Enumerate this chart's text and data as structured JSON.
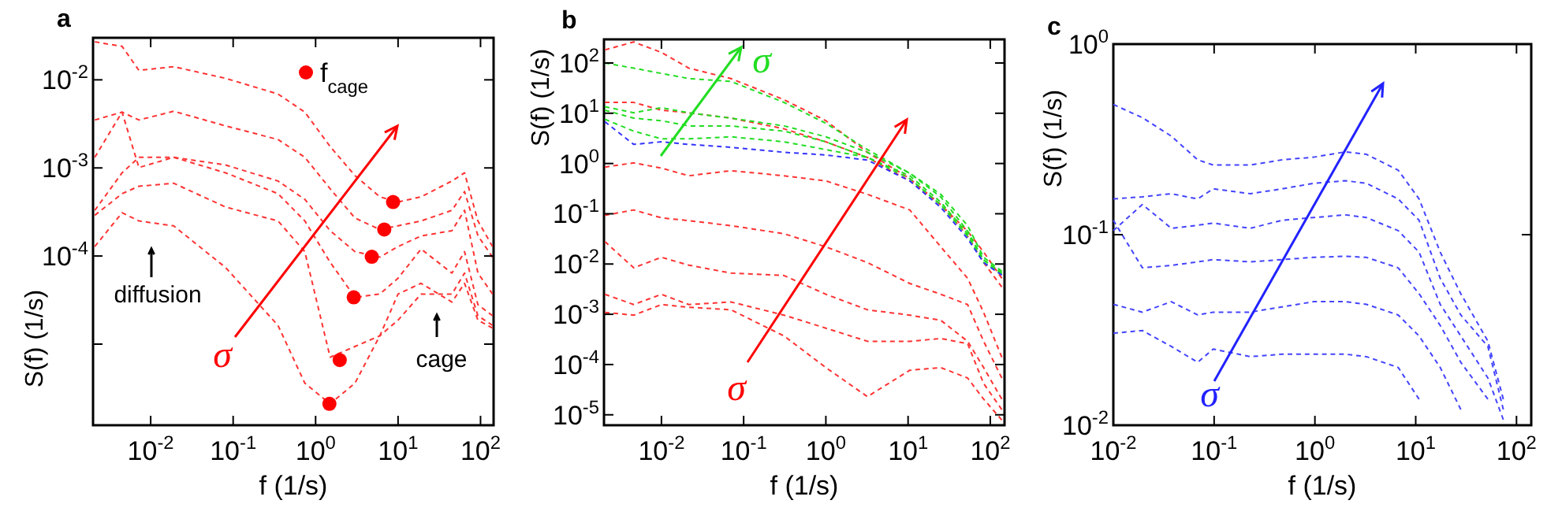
{
  "chart_data": [
    {
      "type": "line",
      "title": "a",
      "xlabel": "f  (1/s)",
      "ylabel": "S(f)  (1/s)",
      "log": "xy",
      "line_style": "dashed",
      "legend": "top",
      "x": [
        0.0021,
        0.0045,
        0.0072,
        0.019,
        0.081,
        0.35,
        0.74,
        1.5,
        3,
        6,
        10,
        19,
        45,
        64,
        93,
        140
      ],
      "xlim": [
        0.002,
        144
      ],
      "ylim": [
        1.2e-06,
        0.03
      ],
      "xticks": [
        {
          "value": 0.01,
          "label": "10$^{-2}$"
        },
        {
          "value": 0.1,
          "label": "10$^{-1}$"
        },
        {
          "value": 1,
          "label": "10$^{0}$"
        },
        {
          "value": 10,
          "label": "10$^{1}$"
        },
        {
          "value": 100,
          "label": "10$^{2}$"
        }
      ],
      "yticks": [
        {
          "value": 0.01,
          "label": "10$^{-2}$"
        },
        {
          "value": 0.001,
          "label": "10$^{-3}$"
        },
        {
          "value": 0.0001,
          "label": "10$^{-4}$"
        },
        {
          "value": 1e-05,
          "label": null
        }
      ],
      "series": [
        {
          "color": "#ff3333",
          "values": [
            0.027,
            0.024,
            0.0128,
            0.0141,
            0.0104,
            0.0069,
            0.0043,
            0.00175,
            0.00082,
            0.00047,
            0.00041,
            0.00047,
            0.00071,
            0.00088,
            0.00025,
            0.000128
          ]
        },
        {
          "color": "#ff3333",
          "values": [
            0.0035,
            0.0043,
            0.0035,
            0.0044,
            0.003,
            0.0021,
            0.00132,
            0.00058,
            0.00027,
            0.0002,
            0.00022,
            0.00025,
            0.00033,
            0.00054,
            0.00017,
            9.7e-05
          ]
        },
        {
          "color": "#ff3333",
          "values": [
            0.00132,
            0.0043,
            0.00101,
            0.00132,
            0.00108,
            0.00071,
            0.00044,
            0.000194,
            0.000112,
            9.7e-05,
            0.000128,
            0.000169,
            0.000194,
            0.00033,
            6.4e-05,
            3.7e-05
          ]
        },
        {
          "color": "#ff3333",
          "values": [
            0.00033,
            0.00088,
            0.00132,
            0.00132,
            0.00088,
            0.00051,
            0.00025,
            8.5e-05,
            3.4e-05,
            3.7e-05,
            5.6e-05,
            0.00012,
            6.4e-05,
            0.000112,
            2.8e-05,
            2.1e-05
          ]
        },
        {
          "color": "#ff3333",
          "values": [
            0.00029,
            0.00051,
            0.00062,
            0.00067,
            0.00036,
            0.00025,
            0.000112,
            7.1e-06,
            9.4e-06,
            1.24e-05,
            1.87e-05,
            3.7e-05,
            3.7e-05,
            6.4e-05,
            2.1e-05,
            1.63e-05
          ]
        },
        {
          "color": "#ff3333",
          "values": [
            0.000128,
            0.00031,
            0.00025,
            0.00022,
            7.4e-05,
            1.63e-05,
            3.6e-06,
            2.1e-06,
            3.6e-06,
            1.24e-05,
            3.7e-05,
            4.9e-05,
            3e-05,
            4.9e-05,
            1.87e-05,
            1.52e-05
          ]
        },
        {
          "type": "scatter",
          "name": "f$_{cage}$",
          "marker": "circle",
          "color": "#ff0000",
          "x": [
            8.7,
            6.8,
            4.8,
            2.9,
            1.96,
            1.47
          ],
          "values": [
            0.00041,
            0.0002,
            9.8e-05,
            3.4e-05,
            6.6e-06,
            2.1e-06
          ]
        }
      ],
      "annotations": [
        "diffusion",
        "cage",
        "σ"
      ]
    },
    {
      "type": "line",
      "title": "b",
      "xlabel": "f  (1/s)",
      "ylabel": "S(f)  (1/s)",
      "log": "xy",
      "line_style": "dashed",
      "x": [
        0.00205,
        0.0046,
        0.01,
        0.0215,
        0.07,
        0.31,
        1,
        3.2,
        10.5,
        25,
        53,
        83,
        138
      ],
      "xlim": [
        0.002,
        149
      ],
      "ylim": [
        6.2e-06,
        295
      ],
      "xticks": [
        {
          "value": 0.01,
          "label": "10$^{-2}$"
        },
        {
          "value": 0.1,
          "label": "10$^{-1}$"
        },
        {
          "value": 1,
          "label": "10$^{0}$"
        },
        {
          "value": 10,
          "label": "10$^{1}$"
        },
        {
          "value": 100,
          "label": "10$^{2}$"
        }
      ],
      "yticks": [
        {
          "value": 100,
          "label": "10$^{2}$"
        },
        {
          "value": 10,
          "label": "10$^{1}$"
        },
        {
          "value": 1,
          "label": "10$^{0}$"
        },
        {
          "value": 0.1,
          "label": "10$^{-1}$"
        },
        {
          "value": 0.01,
          "label": "10$^{-2}$"
        },
        {
          "value": 0.001,
          "label": "10$^{-3}$"
        },
        {
          "value": 0.0001,
          "label": "10$^{-4}$"
        },
        {
          "value": 1e-05,
          "label": "10$^{-5}$"
        }
      ],
      "series": [
        {
          "color": "#ff3333",
          "values": [
            182,
            262,
            162,
            79,
            49,
            18.6,
            7.1,
            1.67,
            0.5,
            0.151,
            0.045,
            0.0173,
            0.0052
          ]
        },
        {
          "color": "#ff3333",
          "values": [
            16.4,
            16.4,
            11.5,
            10.2,
            8.0,
            4.9,
            2.7,
            1.32,
            0.45,
            0.151,
            0.036,
            0.0107,
            0.0035
          ]
        },
        {
          "color": "#ff3333",
          "values": [
            0.85,
            1.03,
            0.81,
            0.57,
            0.72,
            0.57,
            0.45,
            0.244,
            0.119,
            0.022,
            0.0052,
            0.00109,
            0.00014
          ]
        },
        {
          "color": "#ff3333",
          "values": [
            0.093,
            0.119,
            0.083,
            0.073,
            0.058,
            0.04,
            0.022,
            0.0107,
            0.0041,
            0.0025,
            0.00156,
            0.00029,
            5.4e-05
          ]
        },
        {
          "color": "#ff3333",
          "values": [
            0.028,
            0.0084,
            0.0136,
            0.0095,
            0.0066,
            0.0059,
            0.0025,
            0.00123,
            0.00096,
            0.00076,
            0.00029,
            8.7e-05,
            2.05e-05
          ]
        },
        {
          "color": "#ff3333",
          "values": [
            0.0025,
            0.00156,
            0.0025,
            0.00156,
            0.00176,
            0.00096,
            0.00053,
            0.00029,
            0.00029,
            0.00033,
            0.00026,
            4.2e-05,
            1.27e-05
          ]
        },
        {
          "color": "#ff3333",
          "values": [
            0.00109,
            0.00096,
            0.00156,
            0.00138,
            0.00123,
            0.00037,
            8.7e-05,
            2.3e-05,
            7.7e-05,
            8.7e-05,
            5.4e-05,
            2.05e-05,
            7.9e-06
          ]
        },
        {
          "color": "#22dd22",
          "values": [
            100,
            79,
            62,
            49,
            43,
            16.4,
            6.3,
            1.89,
            0.64,
            0.244,
            0.058,
            0.0136,
            0.0072
          ]
        },
        {
          "color": "#22dd22",
          "values": [
            13.5,
            10.2,
            12.9,
            10.2,
            8.0,
            5.6,
            3.4,
            1.67,
            0.64,
            0.216,
            0.045,
            0.0121,
            0.0068
          ]
        },
        {
          "color": "#22dd22",
          "values": [
            11.5,
            8.0,
            7.1,
            5.6,
            5.6,
            4.4,
            2.7,
            1.32,
            0.57,
            0.17,
            0.04,
            0.0121,
            0.0064
          ]
        },
        {
          "color": "#22dd22",
          "values": [
            7.6,
            4.4,
            3.1,
            3.1,
            3.4,
            2.7,
            1.89,
            1.32,
            0.5,
            0.151,
            0.036,
            0.0107,
            0.0062
          ]
        },
        {
          "color": "#3333ff",
          "values": [
            6.8,
            2.4,
            2.7,
            2.4,
            2.1,
            1.67,
            1.48,
            1.17,
            0.45,
            0.134,
            0.032,
            0.0107,
            0.006
          ]
        }
      ],
      "annotations": [
        "σ",
        "σ"
      ]
    },
    {
      "type": "line",
      "title": "c",
      "xlabel": "f  (1/s)",
      "ylabel": "S(f)  (1/s)",
      "log": "xy",
      "line_style": "dashed",
      "x": [
        0.01,
        0.0194,
        0.0376,
        0.0687,
        0.098,
        0.229,
        0.471,
        0.97,
        2,
        3.24,
        6.7,
        10.8,
        17.5,
        28,
        52,
        74
      ],
      "xlim": [
        0.01,
        140
      ],
      "ylim": [
        0.01,
        1
      ],
      "xticks": [
        {
          "value": 0.01,
          "label": "10$^{-2}$"
        },
        {
          "value": 0.1,
          "label": "10$^{-1}$"
        },
        {
          "value": 1,
          "label": "10$^{0}$"
        },
        {
          "value": 10,
          "label": "10$^{1}$"
        },
        {
          "value": 100,
          "label": "10$^{2}$"
        }
      ],
      "yticks": [
        {
          "value": 1,
          "label": "10$^{0}$"
        },
        {
          "value": 0.1,
          "label": "10$^{-1}$"
        },
        {
          "value": 0.01,
          "label": "10$^{-2}$"
        }
      ],
      "series": [
        {
          "color": "#4444ff",
          "values": [
            0.482,
            0.411,
            0.329,
            0.247,
            0.232,
            0.232,
            0.247,
            0.255,
            0.272,
            0.264,
            0.218,
            0.154,
            0.081,
            0.049,
            0.0276,
            0.0137
          ]
        },
        {
          "color": "#4444ff",
          "values": [
            0.154,
            0.158,
            0.164,
            0.154,
            0.174,
            0.164,
            0.174,
            0.186,
            0.192,
            0.186,
            0.154,
            0.119,
            0.059,
            0.0379,
            0.0259,
            0.0121
          ]
        },
        {
          "color": "#4444ff",
          "values": [
            0.105,
            0.144,
            0.108,
            0.112,
            0.115,
            0.108,
            0.119,
            0.123,
            0.127,
            0.123,
            0.105,
            0.081,
            0.0431,
            0.0294,
            0.0177,
            0.0107
          ]
        },
        {
          "color": "#4444ff",
          "values": [
            0.119,
            0.067,
            0.069,
            0.072,
            0.074,
            0.072,
            0.074,
            0.076,
            0.077,
            0.076,
            0.067,
            0.049,
            0.0334,
            0.0214,
            0.0137,
            null
          ]
        },
        {
          "color": "#4444ff",
          "values": [
            0.0431,
            0.0392,
            0.0445,
            0.0379,
            0.0392,
            0.0392,
            0.0418,
            0.0445,
            0.0445,
            0.0431,
            0.0379,
            0.0294,
            0.0201,
            0.0121,
            null,
            null
          ]
        },
        {
          "color": "#4444ff",
          "values": [
            0.0304,
            0.0314,
            0.0259,
            0.0214,
            0.0251,
            0.0229,
            0.0236,
            0.0236,
            0.0236,
            0.0229,
            0.0201,
            0.0137,
            null,
            null,
            null,
            null
          ]
        }
      ],
      "annotations": [
        "σ"
      ]
    }
  ]
}
